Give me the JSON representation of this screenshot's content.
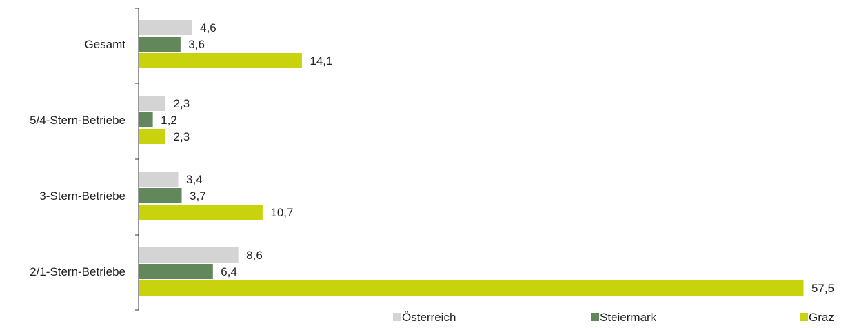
{
  "chart_data": {
    "type": "bar",
    "orientation": "horizontal",
    "categories": [
      "Gesamt",
      "5/4-Stern-Betriebe",
      "3-Stern-Betriebe",
      "2/1-Stern-Betriebe"
    ],
    "series": [
      {
        "name": "Österreich",
        "values": [
          4.6,
          2.3,
          3.4,
          8.6
        ],
        "value_labels": [
          "4,6",
          "2,3",
          "3,4",
          "8,6"
        ],
        "color": "#d4d4d4"
      },
      {
        "name": "Steiermark",
        "values": [
          3.6,
          1.2,
          3.7,
          6.4
        ],
        "value_labels": [
          "3,6",
          "1,2",
          "3,7",
          "6,4"
        ],
        "color": "#62875a"
      },
      {
        "name": "Graz",
        "values": [
          14.1,
          2.3,
          10.7,
          57.5
        ],
        "value_labels": [
          "14,1",
          "2,3",
          "10,7",
          "57,5"
        ],
        "color": "#c8d30d"
      }
    ],
    "xlim": [
      0,
      57.5
    ],
    "grid": false,
    "legend_position": "bottom"
  }
}
